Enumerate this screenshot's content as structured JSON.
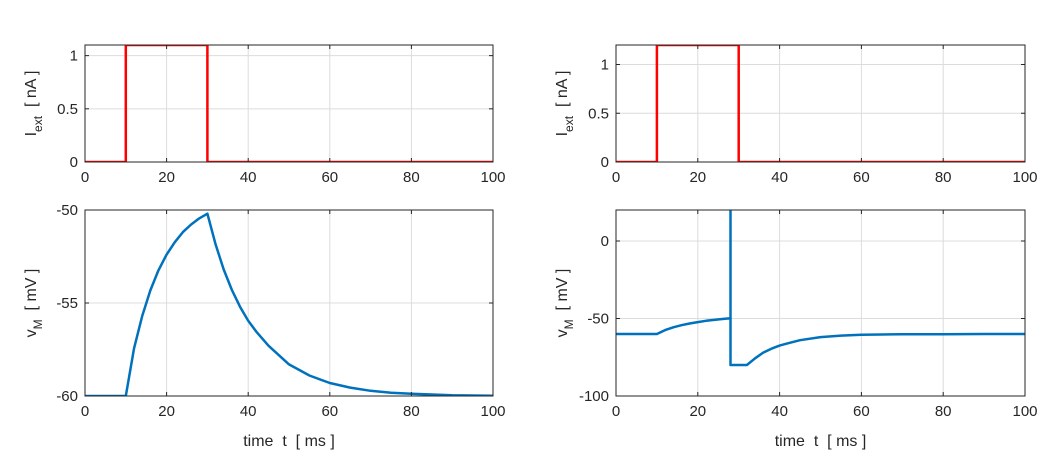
{
  "chart_data": [
    {
      "type": "line",
      "panel": "top-left",
      "ylabel_main": "I",
      "ylabel_sub": "ext",
      "ylabel_unit": "  [ nA ]",
      "xlabel": "",
      "xlim": [
        0,
        100
      ],
      "ylim": [
        0,
        1.1
      ],
      "xticks": [
        0,
        20,
        40,
        60,
        80,
        100
      ],
      "yticks": [
        0,
        0.5,
        1
      ],
      "ytick_labels": [
        "0",
        "0.5",
        "1"
      ],
      "grid": true,
      "color": "#ff0000",
      "series": [
        {
          "x": [
            0,
            10,
            10,
            30,
            30,
            100
          ],
          "y": [
            0,
            0,
            1.1,
            1.1,
            0,
            0
          ]
        }
      ]
    },
    {
      "type": "line",
      "panel": "top-right",
      "ylabel_main": "I",
      "ylabel_sub": "ext",
      "ylabel_unit": "  [ nA ]",
      "xlabel": "",
      "xlim": [
        0,
        100
      ],
      "ylim": [
        0,
        1.2
      ],
      "xticks": [
        0,
        20,
        40,
        60,
        80,
        100
      ],
      "yticks": [
        0,
        0.5,
        1
      ],
      "ytick_labels": [
        "0",
        "0.5",
        "1"
      ],
      "grid": true,
      "color": "#ff0000",
      "series": [
        {
          "x": [
            0,
            10,
            10,
            30,
            30,
            100
          ],
          "y": [
            0,
            0,
            1.2,
            1.2,
            0,
            0
          ]
        }
      ]
    },
    {
      "type": "line",
      "panel": "bottom-left",
      "ylabel_main": "v",
      "ylabel_sub": "M",
      "ylabel_unit": "  [ mV ]",
      "xlabel": "time  t  [ ms ]",
      "xlim": [
        0,
        100
      ],
      "ylim": [
        -60,
        -50
      ],
      "xticks": [
        0,
        20,
        40,
        60,
        80,
        100
      ],
      "yticks": [
        -60,
        -55,
        -50
      ],
      "ytick_labels": [
        "-60",
        "-55",
        "-50"
      ],
      "grid": true,
      "color": "#0072bd",
      "series": [
        {
          "x": [
            0,
            10,
            12,
            14,
            16,
            18,
            20,
            22,
            24,
            26,
            28,
            30,
            32,
            34,
            36,
            38,
            40,
            42,
            45,
            50,
            55,
            60,
            65,
            70,
            75,
            80,
            90,
            100
          ],
          "y": [
            -60,
            -60,
            -57.45,
            -55.72,
            -54.33,
            -53.25,
            -52.4,
            -51.73,
            -51.19,
            -50.78,
            -50.45,
            -50.2,
            -51.85,
            -53.2,
            -54.3,
            -55.2,
            -55.95,
            -56.55,
            -57.3,
            -58.3,
            -58.9,
            -59.3,
            -59.55,
            -59.72,
            -59.82,
            -59.88,
            -59.96,
            -59.99
          ]
        }
      ]
    },
    {
      "type": "line",
      "panel": "bottom-right",
      "ylabel_main": "v",
      "ylabel_sub": "M",
      "ylabel_unit": "  [ mV ]",
      "xlabel": "time  t  [ ms ]",
      "xlim": [
        0,
        100
      ],
      "ylim": [
        -100,
        20
      ],
      "xticks": [
        0,
        20,
        40,
        60,
        80,
        100
      ],
      "yticks": [
        -100,
        -50,
        0
      ],
      "ytick_labels": [
        "-100",
        "-50",
        "0"
      ],
      "grid": true,
      "color": "#0072bd",
      "series": [
        {
          "x": [
            0,
            10,
            12,
            14,
            16,
            18,
            20,
            22,
            24,
            26,
            28,
            28,
            28,
            32,
            34,
            36,
            38,
            40,
            42,
            45,
            50,
            55,
            60,
            65,
            70,
            80,
            90,
            100
          ],
          "y": [
            -60,
            -60,
            -57.5,
            -55.7,
            -54.3,
            -53.2,
            -52.3,
            -51.5,
            -50.9,
            -50.3,
            -49.8,
            20,
            -80,
            -80,
            -75.7,
            -72.0,
            -69.5,
            -67.5,
            -66.0,
            -64.0,
            -62.0,
            -61.0,
            -60.5,
            -60.3,
            -60.2,
            -60.1,
            -60.0,
            -60.0
          ]
        }
      ]
    }
  ]
}
